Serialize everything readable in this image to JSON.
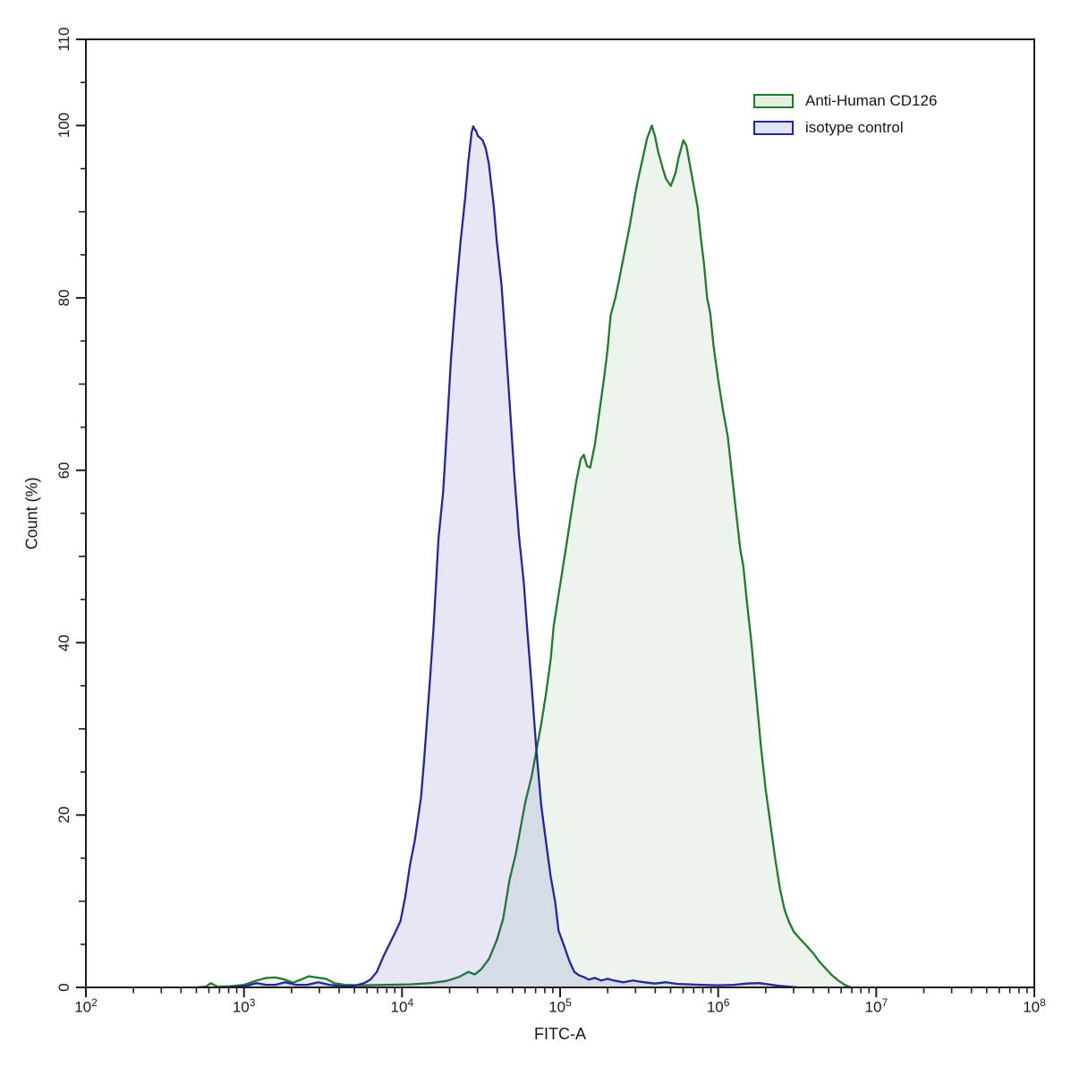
{
  "chart_data": {
    "type": "area",
    "subtype": "flow-cytometry-histogram-overlay",
    "title": "",
    "xlabel": "FITC-A",
    "ylabel": "Count  (%)",
    "x_scale": "log10",
    "xlim_log10": [
      2,
      8
    ],
    "x_major_tick_exponents": [
      2,
      3,
      4,
      5,
      6,
      7,
      8
    ],
    "x_tick_mantissa": "10",
    "x_minor_log_subticks": true,
    "ylim": [
      0,
      110
    ],
    "y_labeled_ticks": [
      0,
      20,
      40,
      60,
      80,
      100,
      110
    ],
    "y_minor_tick_step": 5,
    "grid": false,
    "axis_color": "#1d1d1d",
    "legend_position": "upper-right",
    "legend": {
      "items": [
        {
          "label": "Anti-Human CD126",
          "line_color": "#237a2e",
          "swatch_fill": "#e3f1e3"
        },
        {
          "label": "isotype control",
          "line_color": "#26269a",
          "swatch_fill": "#dfe3f7"
        }
      ]
    },
    "series": [
      {
        "name": "Anti-Human CD126",
        "line_color": "#237a2e",
        "fill_color": "rgba(70,150,80,0.10)",
        "points_log10x_percent": [
          [
            2.7,
            0
          ],
          [
            2.76,
            0.1
          ],
          [
            2.79,
            0.5
          ],
          [
            2.83,
            0.1
          ],
          [
            2.9,
            0.1
          ],
          [
            3.0,
            0.3
          ],
          [
            3.08,
            0.8
          ],
          [
            3.14,
            1.1
          ],
          [
            3.2,
            1.15
          ],
          [
            3.26,
            0.9
          ],
          [
            3.31,
            0.55
          ],
          [
            3.36,
            0.9
          ],
          [
            3.41,
            1.3
          ],
          [
            3.46,
            1.15
          ],
          [
            3.52,
            1.0
          ],
          [
            3.57,
            0.5
          ],
          [
            3.64,
            0.3
          ],
          [
            3.75,
            0.25
          ],
          [
            3.9,
            0.3
          ],
          [
            4.05,
            0.35
          ],
          [
            4.18,
            0.5
          ],
          [
            4.28,
            0.75
          ],
          [
            4.36,
            1.2
          ],
          [
            4.42,
            1.8
          ],
          [
            4.46,
            1.5
          ],
          [
            4.5,
            2.1
          ],
          [
            4.55,
            3.3
          ],
          [
            4.6,
            5.5
          ],
          [
            4.64,
            8.0
          ],
          [
            4.68,
            12.5
          ],
          [
            4.72,
            15.5
          ],
          [
            4.75,
            18.5
          ],
          [
            4.78,
            21.5
          ],
          [
            4.82,
            24.5
          ],
          [
            4.85,
            27.5
          ],
          [
            4.88,
            30.5
          ],
          [
            4.91,
            34
          ],
          [
            4.94,
            38
          ],
          [
            4.96,
            42
          ],
          [
            4.99,
            45.5
          ],
          [
            5.02,
            49
          ],
          [
            5.05,
            52.5
          ],
          [
            5.07,
            55
          ],
          [
            5.1,
            58.5
          ],
          [
            5.13,
            61.3
          ],
          [
            5.15,
            61.8
          ],
          [
            5.17,
            60.5
          ],
          [
            5.19,
            60.3
          ],
          [
            5.22,
            63
          ],
          [
            5.25,
            67
          ],
          [
            5.28,
            71
          ],
          [
            5.3,
            74
          ],
          [
            5.32,
            78
          ],
          [
            5.35,
            80
          ],
          [
            5.38,
            82.7
          ],
          [
            5.41,
            85.5
          ],
          [
            5.44,
            88.3
          ],
          [
            5.47,
            91.5
          ],
          [
            5.49,
            93.5
          ],
          [
            5.52,
            96
          ],
          [
            5.55,
            98.5
          ],
          [
            5.58,
            100
          ],
          [
            5.6,
            98.8
          ],
          [
            5.62,
            97
          ],
          [
            5.65,
            95
          ],
          [
            5.67,
            93.8
          ],
          [
            5.7,
            93.0
          ],
          [
            5.73,
            94.5
          ],
          [
            5.75,
            96.3
          ],
          [
            5.78,
            98.3
          ],
          [
            5.8,
            97.6
          ],
          [
            5.82,
            95.5
          ],
          [
            5.85,
            92.5
          ],
          [
            5.87,
            90.5
          ],
          [
            5.89,
            87
          ],
          [
            5.91,
            84
          ],
          [
            5.93,
            80
          ],
          [
            5.95,
            78.2
          ],
          [
            5.97,
            74.5
          ],
          [
            6.0,
            70.5
          ],
          [
            6.03,
            67
          ],
          [
            6.06,
            64
          ],
          [
            6.09,
            59
          ],
          [
            6.12,
            54
          ],
          [
            6.14,
            50.8
          ],
          [
            6.16,
            48.8
          ],
          [
            6.18,
            45
          ],
          [
            6.21,
            40
          ],
          [
            6.24,
            34
          ],
          [
            6.27,
            28
          ],
          [
            6.3,
            23
          ],
          [
            6.33,
            19
          ],
          [
            6.36,
            15
          ],
          [
            6.39,
            11.5
          ],
          [
            6.42,
            9
          ],
          [
            6.45,
            7.5
          ],
          [
            6.48,
            6.4
          ],
          [
            6.52,
            5.6
          ],
          [
            6.56,
            4.8
          ],
          [
            6.6,
            4.0
          ],
          [
            6.64,
            3.0
          ],
          [
            6.68,
            2.2
          ],
          [
            6.72,
            1.4
          ],
          [
            6.76,
            0.8
          ],
          [
            6.8,
            0.3
          ],
          [
            6.84,
            0
          ]
        ]
      },
      {
        "name": "isotype control",
        "line_color": "#26269a",
        "fill_color": "rgba(60,60,175,0.13)",
        "points_log10x_percent": [
          [
            2.85,
            0
          ],
          [
            2.95,
            0.1
          ],
          [
            3.02,
            0.2
          ],
          [
            3.08,
            0.5
          ],
          [
            3.14,
            0.3
          ],
          [
            3.2,
            0.3
          ],
          [
            3.26,
            0.6
          ],
          [
            3.33,
            0.3
          ],
          [
            3.4,
            0.3
          ],
          [
            3.47,
            0.6
          ],
          [
            3.54,
            0.3
          ],
          [
            3.62,
            0.15
          ],
          [
            3.7,
            0.2
          ],
          [
            3.76,
            0.5
          ],
          [
            3.8,
            0.9
          ],
          [
            3.84,
            1.8
          ],
          [
            3.88,
            3.5
          ],
          [
            3.92,
            5.0
          ],
          [
            3.96,
            6.5
          ],
          [
            3.99,
            7.7
          ],
          [
            4.02,
            10.5
          ],
          [
            4.05,
            14.2
          ],
          [
            4.08,
            17
          ],
          [
            4.1,
            19.5
          ],
          [
            4.12,
            22
          ],
          [
            4.14,
            26.5
          ],
          [
            4.16,
            31.5
          ],
          [
            4.18,
            36.5
          ],
          [
            4.2,
            42
          ],
          [
            4.23,
            52
          ],
          [
            4.26,
            57.5
          ],
          [
            4.29,
            66.8
          ],
          [
            4.31,
            73
          ],
          [
            4.34,
            80.3
          ],
          [
            4.37,
            86.5
          ],
          [
            4.4,
            91.7
          ],
          [
            4.42,
            95.9
          ],
          [
            4.44,
            99.2
          ],
          [
            4.45,
            99.9
          ],
          [
            4.47,
            99.3
          ],
          [
            4.48,
            98.8
          ],
          [
            4.51,
            98.3
          ],
          [
            4.53,
            97.3
          ],
          [
            4.55,
            95.5
          ],
          [
            4.56,
            93.8
          ],
          [
            4.58,
            90.7
          ],
          [
            4.6,
            86.5
          ],
          [
            4.63,
            81.4
          ],
          [
            4.65,
            76
          ],
          [
            4.68,
            68
          ],
          [
            4.71,
            59.5
          ],
          [
            4.74,
            52.3
          ],
          [
            4.77,
            47
          ],
          [
            4.79,
            42
          ],
          [
            4.82,
            35
          ],
          [
            4.85,
            27.5
          ],
          [
            4.88,
            21.2
          ],
          [
            4.91,
            17
          ],
          [
            4.94,
            12.9
          ],
          [
            4.97,
            9.8
          ],
          [
            4.99,
            6.6
          ],
          [
            5.02,
            5.1
          ],
          [
            5.06,
            3.0
          ],
          [
            5.09,
            1.8
          ],
          [
            5.12,
            1.4
          ],
          [
            5.15,
            1.2
          ],
          [
            5.18,
            0.9
          ],
          [
            5.22,
            1.1
          ],
          [
            5.26,
            0.8
          ],
          [
            5.3,
            1.0
          ],
          [
            5.34,
            0.8
          ],
          [
            5.4,
            0.6
          ],
          [
            5.46,
            0.8
          ],
          [
            5.53,
            0.6
          ],
          [
            5.6,
            0.45
          ],
          [
            5.67,
            0.6
          ],
          [
            5.74,
            0.4
          ],
          [
            5.82,
            0.35
          ],
          [
            5.9,
            0.3
          ],
          [
            6.0,
            0.25
          ],
          [
            6.1,
            0.3
          ],
          [
            6.18,
            0.45
          ],
          [
            6.26,
            0.5
          ],
          [
            6.32,
            0.35
          ],
          [
            6.38,
            0.2
          ],
          [
            6.44,
            0.1
          ],
          [
            6.5,
            0
          ]
        ]
      }
    ]
  }
}
